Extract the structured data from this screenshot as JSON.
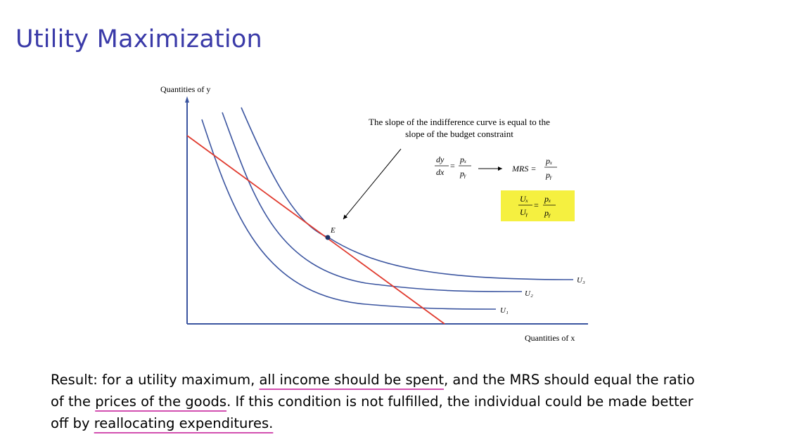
{
  "slide": {
    "title": "Utility Maximization"
  },
  "diagram": {
    "y_axis_label": "Quantities of y",
    "x_axis_label": "Quantities of x",
    "point_label": "E",
    "curve_labels": [
      "U₁",
      "U₂",
      "U₃"
    ],
    "annotation_line1": "The slope of the indifference curve is equal to the",
    "annotation_line2": "slope of the budget constraint",
    "eq1": {
      "lhs_num": "dy",
      "lhs_den": "dx",
      "rhs_num": "pₓ",
      "rhs_den": "pᵧ"
    },
    "eq2": {
      "lhs": "MRS =",
      "rhs_num": "pₓ",
      "rhs_den": "pᵧ"
    },
    "eq3": {
      "lhs_num": "Uₓ",
      "lhs_den": "Uᵧ",
      "rhs_num": "pₓ",
      "rhs_den": "pᵧ"
    },
    "colors": {
      "axis": "#3b55a0",
      "curve": "#3b55a0",
      "budget": "#e03a2e",
      "highlight": "#f5f040"
    }
  },
  "result": {
    "l1_a": "Result:  for a utility maximum, ",
    "l1_u": "all income should be spent",
    "l1_b": ", and the MRS should equal the ratio",
    "l2_a": "of the ",
    "l2_u": "prices of the goods",
    "l2_b": ".  If this condition is not fulfilled, the individual could be made better",
    "l3_a": "off by ",
    "l3_u": "reallocating expenditures."
  }
}
